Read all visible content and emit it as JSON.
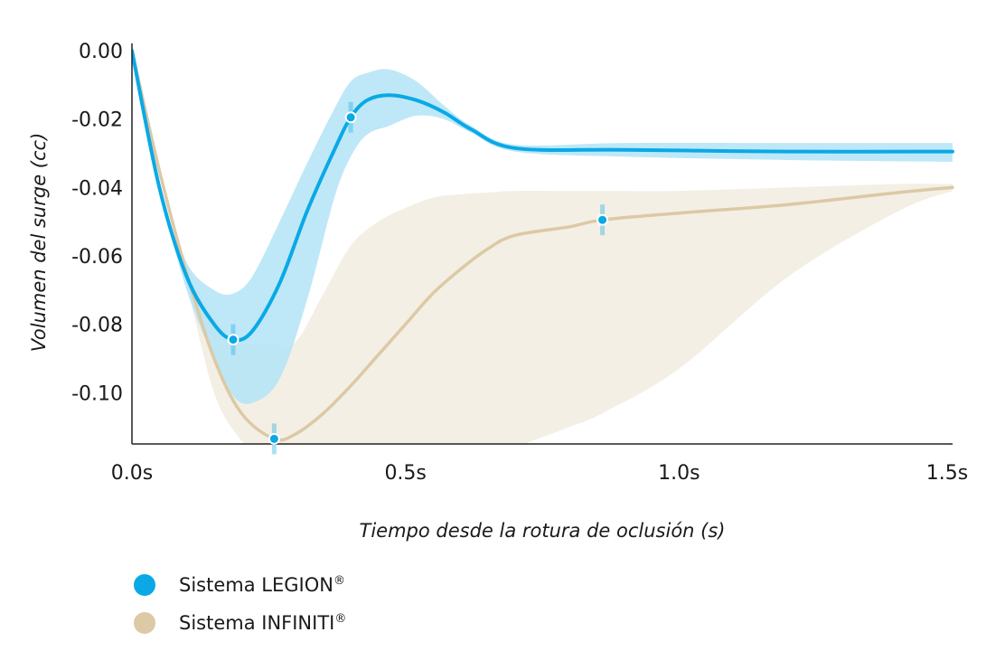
{
  "chart_data": {
    "type": "line",
    "xlabel": "Tiempo desde la rotura de oclusión (s)",
    "ylabel": "Volumen del surge (cc)",
    "xlim": [
      0,
      1.5
    ],
    "ylim": [
      -0.115,
      0.0
    ],
    "x_ticks": [
      0,
      0.5,
      1.0,
      1.5
    ],
    "x_tick_labels": [
      "0.0s",
      "0.5s",
      "1.0s",
      "1.5s"
    ],
    "y_ticks": [
      0.0,
      -0.02,
      -0.04,
      -0.06,
      -0.08,
      -0.1
    ],
    "y_tick_labels": [
      "0.00",
      "-0.02",
      "-0.04",
      "-0.06",
      "-0.08",
      "-0.10"
    ],
    "grid": false,
    "legend_position": "bottom-left",
    "series": [
      {
        "name": "Sistema LEGION",
        "color": "#0aa9e6",
        "band_color": "#b3e4f7",
        "x": [
          0.0,
          0.05,
          0.1,
          0.15,
          0.185,
          0.22,
          0.27,
          0.32,
          0.37,
          0.4,
          0.43,
          0.47,
          0.52,
          0.57,
          0.62,
          0.7,
          0.9,
          1.2,
          1.5
        ],
        "y": [
          0.0,
          -0.04,
          -0.066,
          -0.08,
          -0.0845,
          -0.082,
          -0.068,
          -0.047,
          -0.029,
          -0.0195,
          -0.0145,
          -0.013,
          -0.0145,
          -0.018,
          -0.023,
          -0.0285,
          -0.029,
          -0.0295,
          -0.0295
        ],
        "upper": [
          0.0,
          -0.04,
          -0.062,
          -0.07,
          -0.071,
          -0.066,
          -0.05,
          -0.033,
          -0.017,
          -0.009,
          -0.0065,
          -0.0055,
          -0.009,
          -0.016,
          -0.022,
          -0.0275,
          -0.027,
          -0.027,
          -0.027
        ],
        "lower": [
          0.0,
          -0.04,
          -0.07,
          -0.09,
          -0.101,
          -0.103,
          -0.096,
          -0.073,
          -0.043,
          -0.031,
          -0.0245,
          -0.022,
          -0.019,
          -0.02,
          -0.024,
          -0.0295,
          -0.031,
          -0.032,
          -0.0325
        ],
        "markers": [
          {
            "x": 0.185,
            "y": -0.0845
          },
          {
            "x": 0.4,
            "y": -0.0195
          }
        ]
      },
      {
        "name": "Sistema INFINITI",
        "color": "#dcc9a5",
        "band_color": "#f4efe4",
        "x": [
          0.0,
          0.05,
          0.1,
          0.15,
          0.2,
          0.26,
          0.3,
          0.35,
          0.4,
          0.45,
          0.5,
          0.55,
          0.6,
          0.65,
          0.7,
          0.8,
          0.86,
          1.0,
          1.2,
          1.4,
          1.5
        ],
        "y": [
          0.0,
          -0.035,
          -0.065,
          -0.09,
          -0.106,
          -0.1135,
          -0.112,
          -0.106,
          -0.098,
          -0.089,
          -0.08,
          -0.071,
          -0.064,
          -0.058,
          -0.054,
          -0.0515,
          -0.0495,
          -0.0475,
          -0.045,
          -0.0415,
          -0.04
        ],
        "upper": [
          0.0,
          -0.035,
          -0.062,
          -0.078,
          -0.085,
          -0.086,
          -0.085,
          -0.071,
          -0.057,
          -0.05,
          -0.046,
          -0.043,
          -0.042,
          -0.0415,
          -0.041,
          -0.041,
          -0.041,
          -0.041,
          -0.04,
          -0.039,
          -0.039
        ],
        "lower": [
          0.0,
          -0.035,
          -0.068,
          -0.1,
          -0.114,
          -0.123,
          -0.128,
          -0.132,
          -0.132,
          -0.131,
          -0.128,
          -0.125,
          -0.122,
          -0.119,
          -0.116,
          -0.11,
          -0.106,
          -0.093,
          -0.066,
          -0.047,
          -0.041
        ],
        "markers": [
          {
            "x": 0.26,
            "y": -0.1135
          },
          {
            "x": 0.86,
            "y": -0.0495
          }
        ]
      }
    ]
  },
  "legend": {
    "items": [
      {
        "label": "Sistema LEGION",
        "mark": "®",
        "color": "#0aa9e6"
      },
      {
        "label": "Sistema INFINITI",
        "mark": "®",
        "color": "#dcc9a5"
      }
    ]
  }
}
